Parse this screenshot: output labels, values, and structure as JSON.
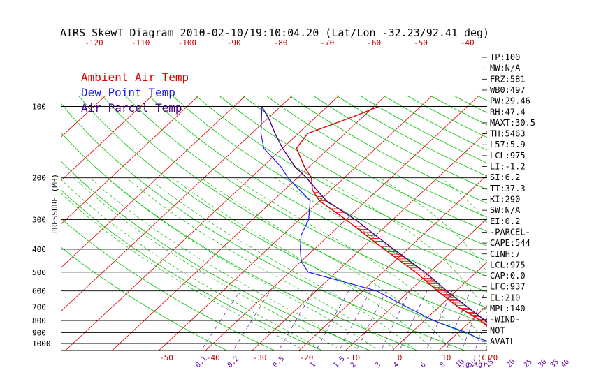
{
  "title": "AIRS SkewT Diagram 2010-02-10/19:10:04.20 (Lat/Lon -32.23/92.41 deg)",
  "colors": {
    "ambient": "#e00000",
    "dewpoint": "#1a1aff",
    "parcel": "#4b0082",
    "isotherm": "#e00000",
    "dry_adiabat": "#00c000",
    "moist_adiabat": "#00c000",
    "mixing_ratio": "#6a0dad",
    "isobar": "#000000"
  },
  "legend": [
    {
      "label": "Ambient Air Temp",
      "color": "#e00000"
    },
    {
      "label": "Dew Point Temp",
      "color": "#1a1aff"
    },
    {
      "label": "Air Parcel Temp",
      "color": "#4b0082"
    }
  ],
  "chart_data": {
    "type": "line",
    "title": "AIRS SkewT Diagram 2010-02-10/19:10:04.20 (Lat/Lon -32.23/92.41 deg)",
    "ylabel": "PRESSURE (MB)",
    "y_scale": "log",
    "ylim": [
      1050,
      100
    ],
    "pressure_ticks": [
      100,
      200,
      300,
      400,
      500,
      600,
      700,
      800,
      900,
      1000
    ],
    "bottom_temp_ticks": [
      -50,
      -40,
      -30,
      -20,
      -10,
      0,
      10,
      20
    ],
    "top_temp_ticks": [
      -120,
      -110,
      -100,
      -90,
      -80,
      -70,
      -60,
      -50,
      -40
    ],
    "bottom_axis_unit": "T(C)",
    "mixing_ratio_labels": [
      "0.1",
      "0.2",
      "0.5",
      "1",
      "1.5",
      "2",
      "3",
      "4",
      "6",
      "8",
      "10",
      "12",
      "15",
      "20",
      "25",
      "30",
      "35",
      "40"
    ],
    "mixing_ratio_unit": "(g/kg)",
    "series": [
      {
        "name": "Ambient Air Temp",
        "points": [
          [
            1000,
            24.5
          ],
          [
            975,
            21.5
          ],
          [
            950,
            21.0
          ],
          [
            900,
            19.0
          ],
          [
            850,
            15.0
          ],
          [
            800,
            12.0
          ],
          [
            700,
            4.0
          ],
          [
            600,
            -4.0
          ],
          [
            500,
            -13.0
          ],
          [
            400,
            -25.0
          ],
          [
            350,
            -32.0
          ],
          [
            300,
            -40.0
          ],
          [
            250,
            -50.0
          ],
          [
            225,
            -54.0
          ],
          [
            200,
            -57.0
          ],
          [
            180,
            -61.0
          ],
          [
            150,
            -67.0
          ],
          [
            130,
            -68.0
          ],
          [
            110,
            -62.0
          ],
          [
            100,
            -59.0
          ]
        ]
      },
      {
        "name": "Dew Point Temp",
        "points": [
          [
            1000,
            20.0
          ],
          [
            975,
            18.0
          ],
          [
            950,
            15.5
          ],
          [
            900,
            12.0
          ],
          [
            850,
            7.0
          ],
          [
            800,
            2.0
          ],
          [
            700,
            -7.0
          ],
          [
            600,
            -17.0
          ],
          [
            550,
            -26.0
          ],
          [
            500,
            -36.0
          ],
          [
            450,
            -40.0
          ],
          [
            400,
            -43.0
          ],
          [
            350,
            -46.0
          ],
          [
            300,
            -48.0
          ],
          [
            250,
            -52.0
          ],
          [
            200,
            -62.0
          ],
          [
            180,
            -66.0
          ],
          [
            150,
            -74.0
          ],
          [
            130,
            -78.0
          ],
          [
            100,
            -84.0
          ]
        ]
      },
      {
        "name": "Air Parcel Temp",
        "points": [
          [
            1000,
            22.0
          ],
          [
            975,
            21.5
          ],
          [
            950,
            20.5
          ],
          [
            900,
            18.5
          ],
          [
            850,
            16.0
          ],
          [
            800,
            13.0
          ],
          [
            700,
            6.0
          ],
          [
            600,
            -2.0
          ],
          [
            500,
            -11.0
          ],
          [
            400,
            -23.0
          ],
          [
            350,
            -30.0
          ],
          [
            300,
            -38.0
          ],
          [
            250,
            -48.5
          ],
          [
            210,
            -56.0
          ],
          [
            200,
            -58.0
          ],
          [
            180,
            -63.0
          ],
          [
            150,
            -70.0
          ],
          [
            130,
            -75.0
          ],
          [
            115,
            -79.0
          ],
          [
            100,
            -84.0
          ]
        ]
      }
    ]
  },
  "indices": [
    "TP:100",
    "MW:N/A",
    "FRZ:581",
    "WB0:497",
    "PW:29.46",
    "RH:47.4",
    "MAXT:30.5",
    "TH:5463",
    "L57:5.9",
    "LCL:975",
    "LI:-1.2",
    "SI:6.2",
    "TT:37.3",
    "KI:290",
    "SW:N/A",
    "EI:0.2",
    "-PARCEL-",
    "CAPE:544",
    "CINH:7",
    "LCL:975",
    "CAP:0.0",
    "LFC:937",
    "EL:210",
    "MPL:140",
    "-WIND-",
    "NOT",
    "AVAIL"
  ]
}
